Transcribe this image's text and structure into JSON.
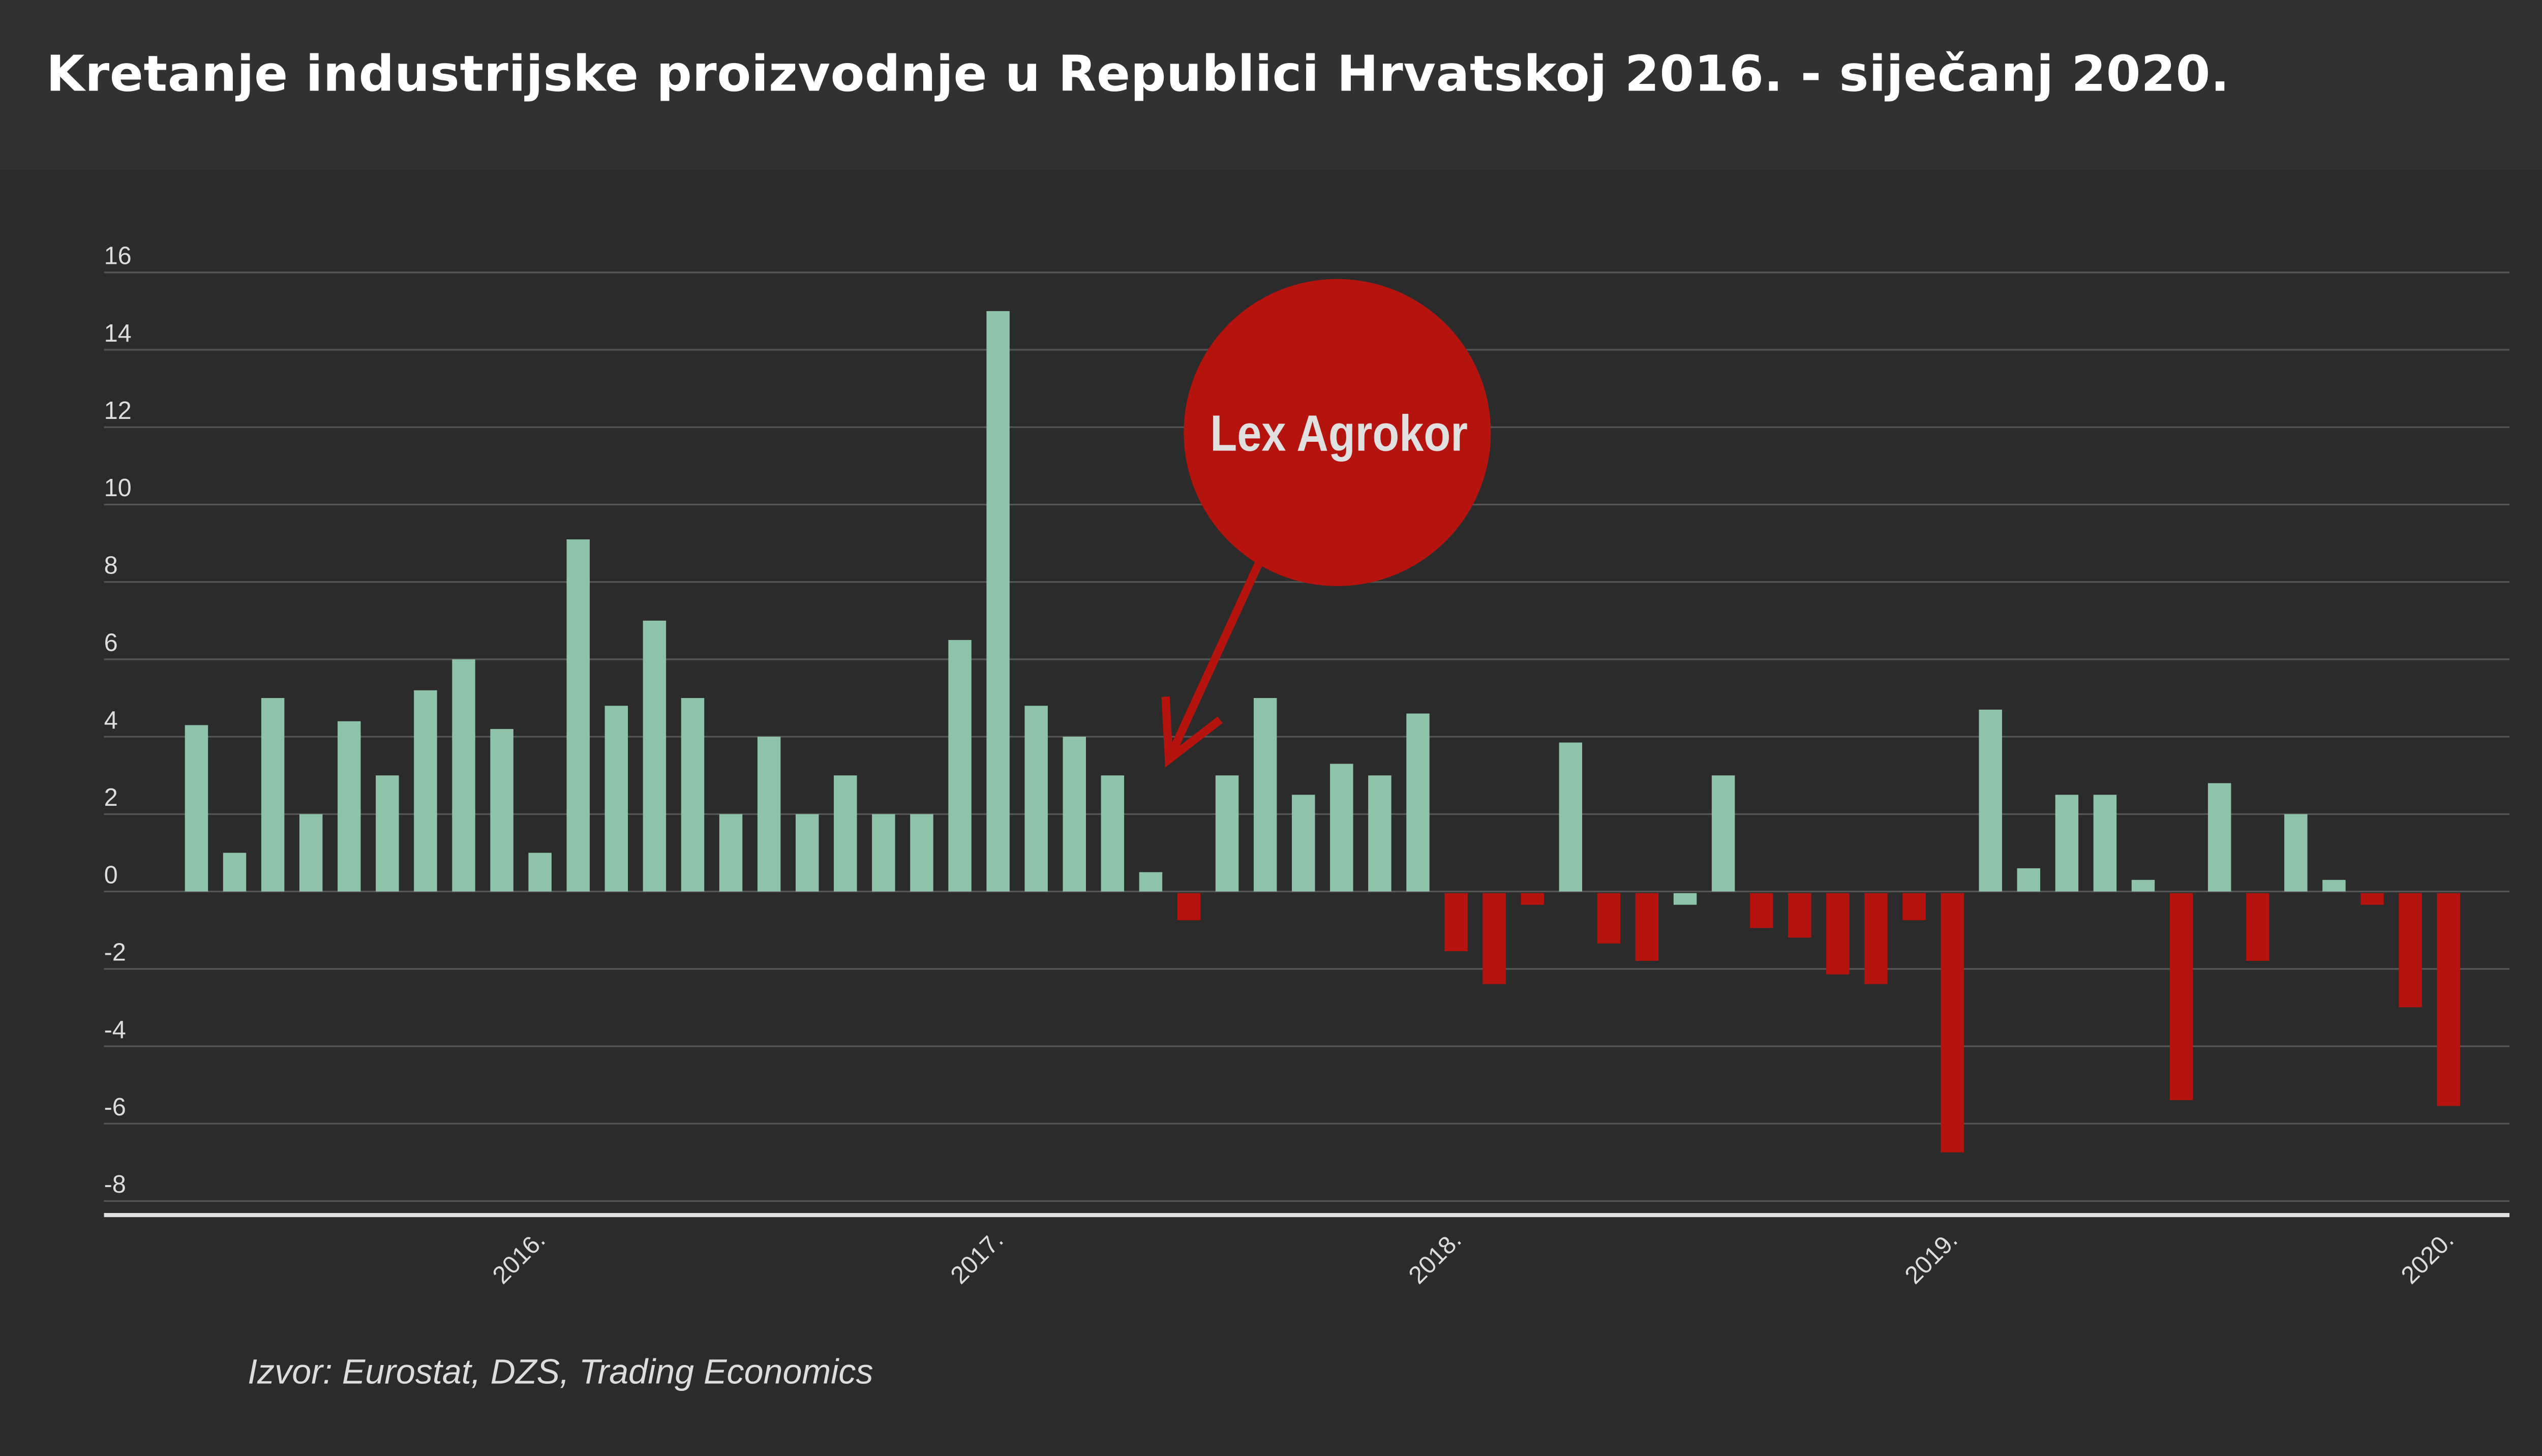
{
  "title": "Kretanje industrijske proizvodnje u Republici Hrvatskoj 2016. - siječanj 2020.",
  "source": "Izvor: Eurostat, DZS, Trading Economics",
  "colors": {
    "positive": "#8fc3a9",
    "negative": "#b5130e",
    "background": "#2b2b2b",
    "header": "#313131",
    "annotation": "#b5130e"
  },
  "annotation": {
    "label": "Lex Agrokor",
    "points_to_bar": 26
  },
  "chart_data": {
    "type": "bar",
    "title": "Kretanje industrijske proizvodnje u Republici Hrvatskoj 2016. - siječanj 2020.",
    "xlabel": "",
    "ylabel": "",
    "ylim": [
      -8,
      16
    ],
    "yticks": [
      16,
      14,
      12,
      10,
      8,
      6,
      4,
      2,
      0,
      -2,
      -4,
      -6,
      -8
    ],
    "xticks": [
      {
        "label": "2016.",
        "index": 9
      },
      {
        "label": "2017.",
        "index": 21
      },
      {
        "label": "2018.",
        "index": 33
      },
      {
        "label": "2019.",
        "index": 46
      },
      {
        "label": "2020.",
        "index": 59
      }
    ],
    "grid": true,
    "values": [
      4.3,
      1.0,
      5.0,
      2.0,
      4.4,
      3.0,
      5.2,
      6.0,
      4.2,
      1.0,
      9.1,
      4.8,
      7.0,
      5.0,
      2.0,
      4.0,
      2.0,
      3.0,
      2.0,
      2.0,
      6.5,
      15.0,
      4.8,
      4.0,
      3.0,
      0.5,
      -0.7,
      3.0,
      5.0,
      2.5,
      3.3,
      3.0,
      4.6,
      -1.5,
      -2.35,
      -0.3,
      3.85,
      -1.3,
      -1.75,
      -0.3,
      3.0,
      -0.9,
      -1.15,
      -2.1,
      -2.35,
      -0.7,
      -6.7,
      4.7,
      0.6,
      2.5,
      2.5,
      0.3,
      -5.35,
      2.8,
      -1.75,
      2.0,
      0.3,
      -0.3,
      -2.95,
      -5.5
    ],
    "bar_colors_override": {
      "39": "positive"
    }
  }
}
